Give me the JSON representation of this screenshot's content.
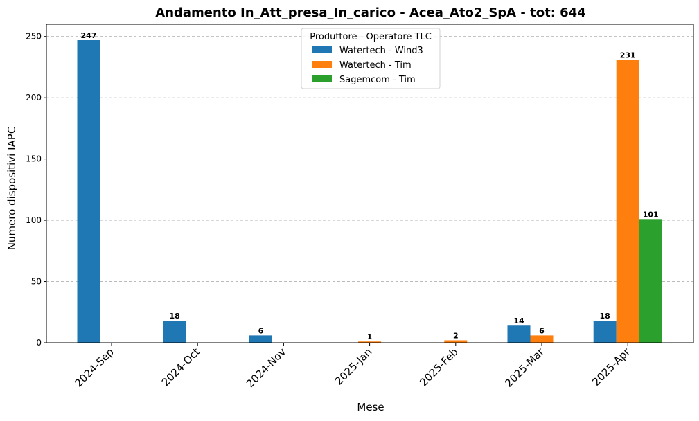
{
  "chart_data": {
    "type": "bar",
    "title": "Andamento In_Att_presa_In_carico - Acea_Ato2_SpA - tot: 644",
    "xlabel": "Mese",
    "ylabel": "Numero dispositivi IAPC",
    "categories": [
      "2024-Sep",
      "2024-Oct",
      "2024-Nov",
      "2025-Jan",
      "2025-Feb",
      "2025-Mar",
      "2025-Apr"
    ],
    "series": [
      {
        "name": "Watertech - Wind3",
        "color": "#1f77b4",
        "values": [
          247,
          18,
          6,
          0,
          0,
          14,
          18
        ]
      },
      {
        "name": "Watertech - Tim",
        "color": "#ff7f0e",
        "values": [
          0,
          0,
          0,
          1,
          2,
          6,
          231
        ]
      },
      {
        "name": "Sagemcom - Tim",
        "color": "#2ca02c",
        "values": [
          0,
          0,
          0,
          0,
          0,
          0,
          101
        ]
      }
    ],
    "ylim": [
      0,
      260
    ],
    "yticks": [
      0,
      50,
      100,
      150,
      200,
      250
    ],
    "grid": "y-dashed",
    "legend": {
      "title": "Produttore - Operatore TLC",
      "placement": "top-center"
    }
  }
}
